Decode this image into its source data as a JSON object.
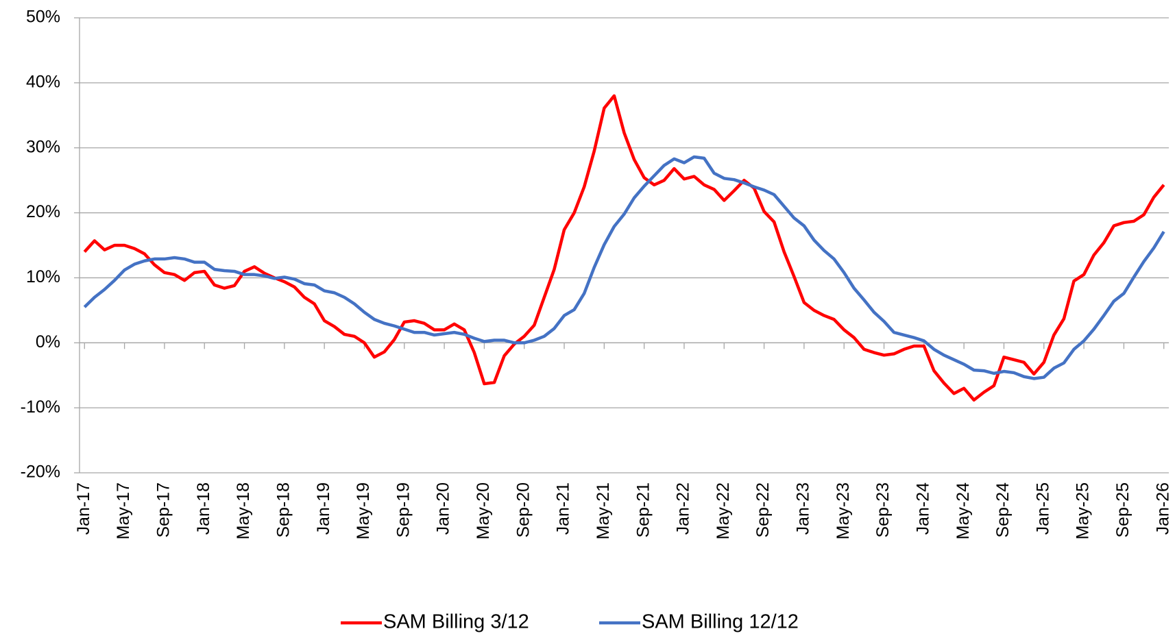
{
  "chart_data": {
    "type": "line",
    "categories": [
      "Jan-17",
      null,
      null,
      null,
      "May-17",
      null,
      null,
      null,
      "Sep-17",
      null,
      null,
      null,
      "Jan-18",
      null,
      null,
      null,
      "May-18",
      null,
      null,
      null,
      "Sep-18",
      null,
      null,
      null,
      "Jan-19",
      null,
      null,
      null,
      "May-19",
      null,
      null,
      null,
      "Sep-19",
      null,
      null,
      null,
      "Jan-20",
      null,
      null,
      null,
      "May-20",
      null,
      null,
      null,
      "Sep-20",
      null,
      null,
      null,
      "Jan-21",
      null,
      null,
      null,
      "May-21",
      null,
      null,
      null,
      "Sep-21",
      null,
      null,
      null,
      "Jan-22",
      null,
      null,
      null,
      "May-22",
      null,
      null,
      null,
      "Sep-22",
      null,
      null,
      null,
      "Jan-23",
      null,
      null,
      null,
      "May-23",
      null,
      null,
      null,
      "Sep-23",
      null,
      null,
      null,
      "Jan-24",
      null,
      null,
      null,
      "May-24",
      null,
      null,
      null,
      "Sep-24",
      null,
      null,
      null,
      "Jan-25",
      null,
      null,
      null,
      "May-25",
      null,
      null,
      null,
      "Sep-25",
      null,
      null,
      null,
      "Jan-26"
    ],
    "series": [
      {
        "name": "SAM Billing 3/12",
        "color": "#ff0000",
        "values": [
          14.0,
          15.7,
          14.3,
          15.0,
          15.0,
          14.5,
          13.7,
          12.0,
          10.8,
          10.5,
          9.6,
          10.8,
          11.0,
          8.9,
          8.4,
          8.8,
          11.0,
          11.7,
          10.7,
          10.0,
          9.4,
          8.6,
          7.0,
          6.0,
          3.4,
          2.5,
          1.3,
          1.0,
          0.0,
          -2.2,
          -1.4,
          0.5,
          3.2,
          3.4,
          3.0,
          2.0,
          2.0,
          2.9,
          2.0,
          -1.5,
          -6.3,
          -6.1,
          -2.0,
          -0.2,
          1.0,
          2.7,
          7.0,
          11.3,
          17.4,
          20.0,
          24.0,
          29.5,
          36.1,
          38.0,
          32.3,
          28.2,
          25.4,
          24.3,
          25.0,
          26.8,
          25.2,
          25.6,
          24.3,
          23.6,
          21.9,
          23.4,
          25.0,
          23.8,
          20.2,
          18.6,
          14.0,
          10.2,
          6.2,
          5.0,
          4.2,
          3.6,
          2.0,
          0.8,
          -1.0,
          -1.5,
          -1.9,
          -1.7,
          -1.0,
          -0.5,
          -0.5,
          -4.3,
          -6.2,
          -7.8,
          -7.0,
          -8.8,
          -7.6,
          -6.6,
          -2.2,
          -2.6,
          -3.0,
          -4.8,
          -3.0,
          1.2,
          3.7,
          9.5,
          10.5,
          13.5,
          15.4,
          18.0,
          18.5,
          18.7,
          19.7,
          22.4,
          24.3
        ]
      },
      {
        "name": "SAM Billing 12/12",
        "color": "#4472c4",
        "values": [
          5.5,
          7.0,
          8.2,
          9.6,
          11.2,
          12.1,
          12.6,
          12.9,
          12.9,
          13.1,
          12.9,
          12.4,
          12.4,
          11.3,
          11.1,
          11.0,
          10.5,
          10.5,
          10.3,
          9.9,
          10.1,
          9.8,
          9.1,
          8.9,
          8.0,
          7.7,
          7.0,
          6.0,
          4.7,
          3.6,
          3.0,
          2.6,
          2.1,
          1.6,
          1.6,
          1.2,
          1.4,
          1.6,
          1.3,
          0.7,
          0.2,
          0.4,
          0.4,
          0.0,
          0.0,
          0.4,
          1.0,
          2.2,
          4.2,
          5.1,
          7.6,
          11.6,
          15.1,
          17.9,
          19.8,
          22.3,
          24.1,
          25.7,
          27.3,
          28.3,
          27.7,
          28.6,
          28.4,
          26.1,
          25.3,
          25.1,
          24.6,
          24.0,
          23.5,
          22.8,
          21.0,
          19.2,
          18.0,
          15.8,
          14.2,
          12.9,
          10.8,
          8.4,
          6.6,
          4.7,
          3.3,
          1.6,
          1.2,
          0.8,
          0.3,
          -1.0,
          -1.9,
          -2.6,
          -3.3,
          -4.2,
          -4.3,
          -4.7,
          -4.4,
          -4.6,
          -5.2,
          -5.5,
          -5.3,
          -3.9,
          -3.1,
          -1.0,
          0.3,
          2.1,
          4.2,
          6.4,
          7.6,
          10.1,
          12.5,
          14.6,
          17.1
        ]
      }
    ],
    "ylim": [
      -20,
      50
    ],
    "yticks": [
      {
        "value": -20,
        "label": "-20%"
      },
      {
        "value": -10,
        "label": "-10%"
      },
      {
        "value": 0,
        "label": "0%"
      },
      {
        "value": 10,
        "label": "10%"
      },
      {
        "value": 20,
        "label": "20%"
      },
      {
        "value": 30,
        "label": "30%"
      },
      {
        "value": 40,
        "label": "40%"
      },
      {
        "value": 50,
        "label": "50%"
      }
    ],
    "grid": true,
    "negative_tick_color": "#ff0000",
    "legend": "bottom"
  }
}
